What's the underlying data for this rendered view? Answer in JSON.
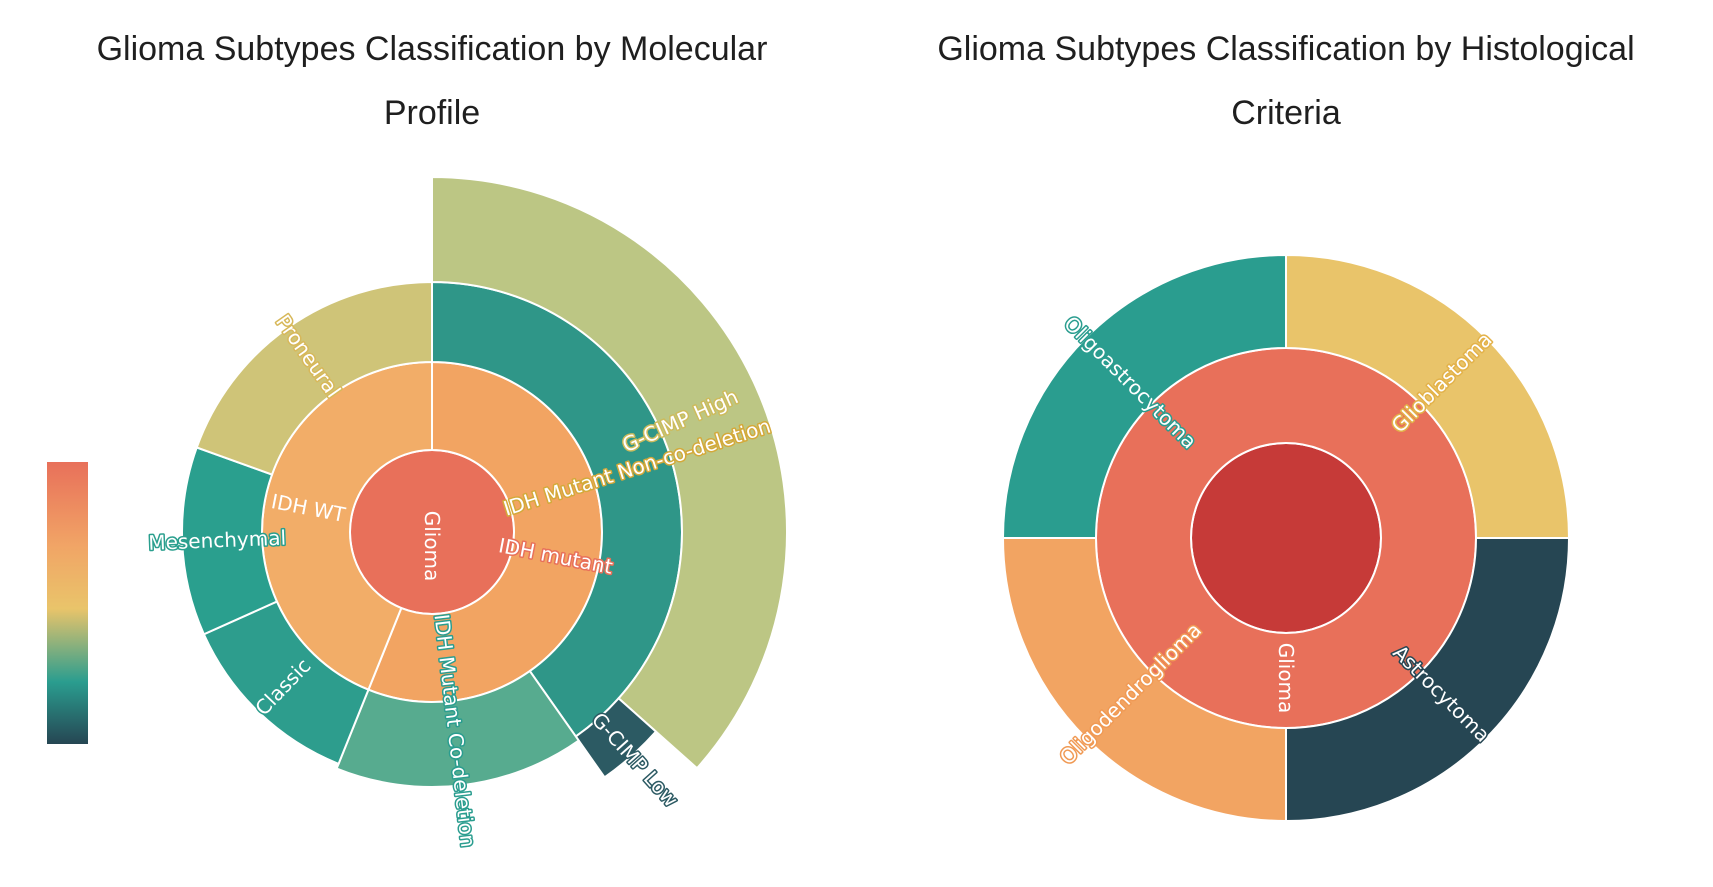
{
  "chart_data": [
    {
      "type": "sunburst",
      "title_lines": [
        "Glioma Subtypes Classification by Molecular",
        "Profile"
      ],
      "colorbar": true,
      "root": {
        "name": "Glioma",
        "children": [
          {
            "name": "IDH mutant",
            "children": [
              {
                "name": "IDH Mutant Non-co-deletion",
                "children": [
                  {
                    "name": "G-CIMP High",
                    "value": 3
                  },
                  {
                    "name": "G-CIMP Low",
                    "value": 0.3
                  }
                ]
              },
              {
                "name": "IDH Mutant Co-deletion",
                "value": 1.3
              }
            ]
          },
          {
            "name": "IDH WT",
            "children": [
              {
                "name": "Classic",
                "value": 1
              },
              {
                "name": "Mesenchymal",
                "value": 1
              },
              {
                "name": "Proneural",
                "value": 1.6
              }
            ]
          }
        ]
      }
    },
    {
      "type": "sunburst",
      "title_lines": [
        "Glioma Subtypes Classification by Histological",
        "Criteria"
      ],
      "root": {
        "name": "Glioma",
        "children": [
          {
            "name": "",
            "children": [
              {
                "name": "Glioblastoma",
                "value": 1
              },
              {
                "name": "Astrocytoma",
                "value": 1
              },
              {
                "name": "Oligodendroglioma",
                "value": 1
              },
              {
                "name": "Oligoastrocytoma",
                "value": 1
              }
            ]
          }
        ]
      }
    }
  ],
  "palette": {
    "colorbar_stops": [
      "#e8705a",
      "#f1a566",
      "#e9c46a",
      "#2a9d8f",
      "#264653"
    ],
    "chart1": {
      "Glioma": "#e8705a",
      "IDH mutant": "#f2a462",
      "IDH WT": "#f2ad68",
      "IDH Mutant Non-co-deletion": "#2f9688",
      "IDH Mutant Co-deletion": "#57ab8f",
      "G-CIMP High": "#bcc684",
      "G-CIMP Low": "#2c5a63",
      "Classic": "#2d9d8d",
      "Mesenchymal": "#2a9f8e",
      "Proneural": "#cfc478"
    },
    "chart1_text": {
      "Glioma": "#ffffff",
      "IDH mutant": "#ffffff",
      "IDH WT": "#ffffff",
      "IDH Mutant Non-co-deletion": "#ffffff",
      "IDH Mutant Co-deletion": "#ffffff",
      "G-CIMP High": "#ffffff",
      "G-CIMP Low": "#ffffff",
      "Classic": "#ffffff",
      "Mesenchymal": "#ffffff",
      "Proneural": "#ffffff"
    },
    "chart1_outline": {
      "Glioma": "#e8705a",
      "IDH mutant": "#e8705a",
      "IDH WT": "#f2ad68",
      "IDH Mutant Non-co-deletion": "#d4a93a",
      "IDH Mutant Co-deletion": "#2a9d8f",
      "G-CIMP High": "#cdbb5c",
      "G-CIMP Low": "#2c5a63",
      "Classic": "#2d9d8d",
      "Mesenchymal": "#2a9f8e",
      "Proneural": "#d7b85a"
    },
    "chart2": {
      "Glioma": "#c63a38",
      "": "#e8705a",
      "Glioblastoma": "#e9c46a",
      "Astrocytoma": "#264653",
      "Oligodendroglioma": "#f2a462",
      "Oligoastrocytoma": "#2a9d8f"
    },
    "chart2_text": {
      "Glioma": "#ffffff",
      "Glioblastoma": "#ffffff",
      "Astrocytoma": "#ffffff",
      "Oligodendroglioma": "#ffffff",
      "Oligoastrocytoma": "#ffffff"
    },
    "chart2_outline": {
      "Glioma": "#e8705a",
      "Glioblastoma": "#e3b24a",
      "Astrocytoma": "#264653",
      "Oligodendroglioma": "#f09a55",
      "Oligoastrocytoma": "#2a9d8f"
    }
  }
}
